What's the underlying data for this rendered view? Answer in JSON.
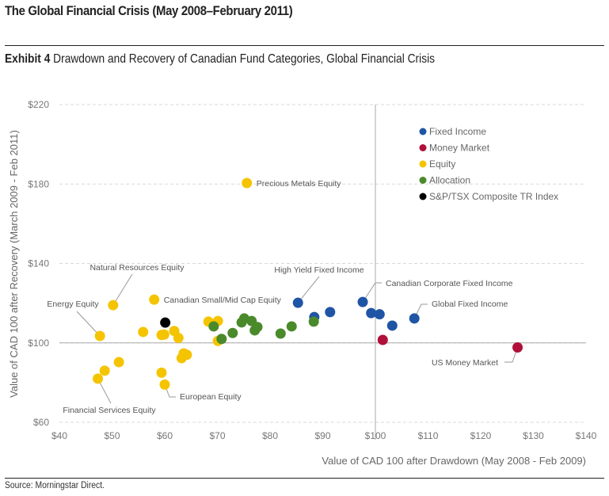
{
  "header": {
    "title": "The Global Financial Crisis (May 2008–February 2011)",
    "exhibit_label": "Exhibit 4",
    "exhibit_title": "Drawdown and Recovery of Canadian Fund Categories, Global Financial Crisis"
  },
  "footer": {
    "source": "Source: Morningstar Direct."
  },
  "chart_data": {
    "type": "scatter",
    "title": "Drawdown and Recovery of Canadian Fund Categories, Global Financial Crisis",
    "xlabel": "Value of CAD 100 after Drawdown (May 2008 - Feb 2009)",
    "ylabel": "Value of CAD 100 after Recovery  (March 2009 - Feb 2011)",
    "xlim": [
      40,
      140
    ],
    "ylim": [
      60,
      220
    ],
    "x_ticks": [
      40,
      50,
      60,
      70,
      80,
      90,
      100,
      110,
      120,
      130,
      140
    ],
    "y_ticks": [
      60,
      100,
      140,
      180,
      220
    ],
    "x_tick_labels": [
      "$40",
      "$50",
      "$60",
      "$70",
      "$80",
      "$90",
      "$100",
      "$110",
      "$120",
      "$130",
      "$140"
    ],
    "y_tick_labels": [
      "$60",
      "$100",
      "$140",
      "$180",
      "$220"
    ],
    "grid": "horizontal dashed",
    "reference_lines": {
      "x": 100,
      "y": 100
    },
    "legend_position": "top-right",
    "series": [
      {
        "name": "Fixed Income",
        "color": "#1f55a5",
        "points": [
          {
            "x": 85.3,
            "y": 120.2,
            "label": "High Yield Fixed Income"
          },
          {
            "x": 88.4,
            "y": 113.0
          },
          {
            "x": 91.4,
            "y": 115.5
          },
          {
            "x": 97.6,
            "y": 120.6,
            "label": "Canadian Corporate Fixed Income"
          },
          {
            "x": 99.2,
            "y": 115.0
          },
          {
            "x": 100.8,
            "y": 114.4
          },
          {
            "x": 103.2,
            "y": 108.7
          },
          {
            "x": 107.4,
            "y": 112.3,
            "label": "Global Fixed Income"
          }
        ]
      },
      {
        "name": "Money Market",
        "color": "#b0103a",
        "points": [
          {
            "x": 101.4,
            "y": 101.5
          },
          {
            "x": 127.0,
            "y": 97.7,
            "label": "US Money Market"
          }
        ]
      },
      {
        "name": "Equity",
        "color": "#f5c400",
        "points": [
          {
            "x": 75.6,
            "y": 180.5,
            "label": "Precious Metals Equity"
          },
          {
            "x": 50.2,
            "y": 119.0,
            "label": "Natural Resources Equity"
          },
          {
            "x": 47.7,
            "y": 103.5,
            "label": "Energy Equity"
          },
          {
            "x": 47.3,
            "y": 82.0,
            "label": "Financial Services Equity"
          },
          {
            "x": 48.6,
            "y": 86.0
          },
          {
            "x": 51.3,
            "y": 90.3
          },
          {
            "x": 58.0,
            "y": 121.8,
            "label": "Canadian Small/Mid Cap Equity"
          },
          {
            "x": 55.9,
            "y": 105.5
          },
          {
            "x": 59.4,
            "y": 104.0
          },
          {
            "x": 59.9,
            "y": 104.2
          },
          {
            "x": 61.8,
            "y": 106.0
          },
          {
            "x": 62.6,
            "y": 102.5
          },
          {
            "x": 63.6,
            "y": 94.7
          },
          {
            "x": 64.2,
            "y": 94.0
          },
          {
            "x": 63.2,
            "y": 92.3
          },
          {
            "x": 59.4,
            "y": 85.0
          },
          {
            "x": 60.0,
            "y": 79.0,
            "label": "European Equity"
          },
          {
            "x": 68.3,
            "y": 110.7
          },
          {
            "x": 70.1,
            "y": 111.0
          },
          {
            "x": 70.1,
            "y": 101.0
          }
        ]
      },
      {
        "name": "Allocation",
        "color": "#4a8a2a",
        "points": [
          {
            "x": 69.3,
            "y": 108.3
          },
          {
            "x": 70.8,
            "y": 102.0
          },
          {
            "x": 72.9,
            "y": 105.0
          },
          {
            "x": 74.6,
            "y": 110.3
          },
          {
            "x": 75.1,
            "y": 112.3
          },
          {
            "x": 76.5,
            "y": 111.0
          },
          {
            "x": 77.1,
            "y": 106.3
          },
          {
            "x": 77.6,
            "y": 108.0
          },
          {
            "x": 82.0,
            "y": 104.7
          },
          {
            "x": 84.1,
            "y": 108.3
          },
          {
            "x": 88.3,
            "y": 110.7
          }
        ]
      },
      {
        "name": "S&P/TSX Composite TR Index",
        "color": "#000000",
        "points": [
          {
            "x": 60.1,
            "y": 110.2
          }
        ]
      }
    ]
  }
}
